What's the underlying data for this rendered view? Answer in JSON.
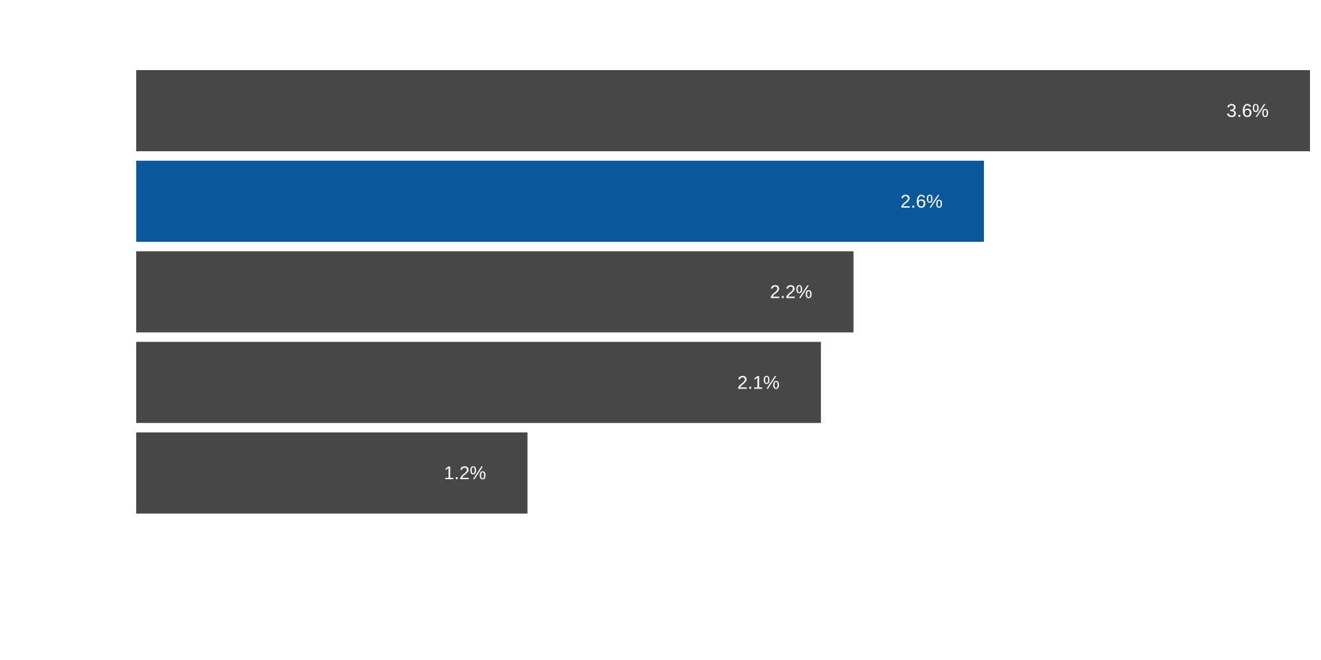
{
  "chart_data": {
    "type": "bar",
    "orientation": "horizontal",
    "title": "",
    "xlabel": "",
    "ylabel": "",
    "grid": false,
    "legend": "none",
    "xlim": [
      0,
      3.6
    ],
    "series": [
      {
        "values": [
          3.6,
          2.6,
          2.2,
          2.1,
          1.2
        ],
        "labels": [
          "3.6%",
          "2.6%",
          "2.2%",
          "2.1%",
          "1.2%"
        ],
        "colors": [
          "#474747",
          "#0b579c",
          "#474747",
          "#474747",
          "#474747"
        ]
      }
    ],
    "highlight_index": 1
  }
}
